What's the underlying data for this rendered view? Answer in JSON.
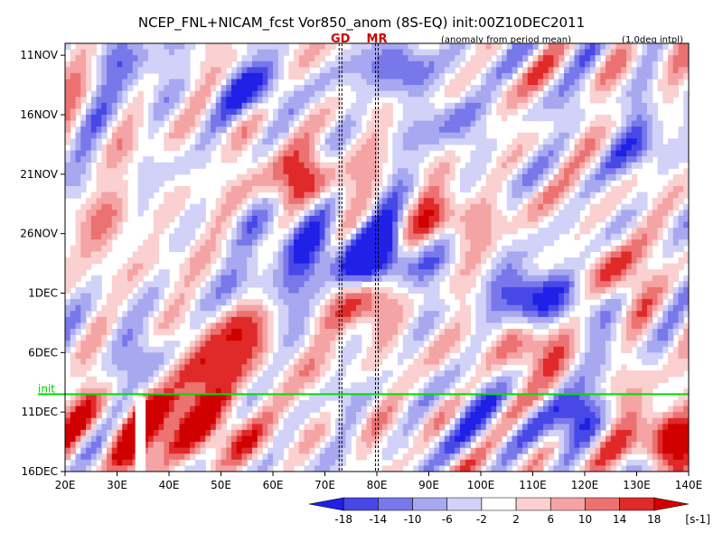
{
  "chart_data": {
    "type": "heatmap",
    "title": "NCEP_FNL+NICAM_fcst Vor850_anom (8S-EQ) init:00Z10DEC2011",
    "note_left": "(anomaly from period mean)",
    "note_right": "(1.0deg intpl)",
    "x_ticks": [
      "20E",
      "30E",
      "40E",
      "50E",
      "60E",
      "70E",
      "80E",
      "90E",
      "100E",
      "110E",
      "120E",
      "130E",
      "140E"
    ],
    "x_range": [
      20,
      140
    ],
    "y_ticks": [
      "11NOV",
      "16NOV",
      "21NOV",
      "26NOV",
      "1DEC",
      "6DEC",
      "11DEC",
      "16DEC"
    ],
    "y_range_days": [
      0,
      36
    ],
    "markers": [
      {
        "label": "GD",
        "lon": 73
      },
      {
        "label": "MR",
        "lon": 80
      }
    ],
    "init_label": "init",
    "init_day": 29.5,
    "colorbar": {
      "levels": [
        "-18",
        "-14",
        "-10",
        "-6",
        "-2",
        "2",
        "6",
        "10",
        "14",
        "18"
      ],
      "colors": [
        "#2020e6",
        "#4848e6",
        "#7878ea",
        "#a8a8f0",
        "#d2d2f8",
        "#ffffff",
        "#fad0d0",
        "#f4a4a4",
        "#ec7272",
        "#e02a2a",
        "#d00000"
      ],
      "unit": "[s-1]"
    },
    "features": [
      {
        "lon": 45,
        "day": 27,
        "value": 18
      },
      {
        "lon": 55,
        "day": 25,
        "value": 14
      },
      {
        "lon": 40,
        "day": 32,
        "value": 14
      },
      {
        "lon": 65,
        "day": 11,
        "value": 16
      },
      {
        "lon": 78,
        "day": 22,
        "value": 14
      },
      {
        "lon": 95,
        "day": 15,
        "value": 12
      },
      {
        "lon": 110,
        "day": 26,
        "value": 14
      },
      {
        "lon": 127,
        "day": 20,
        "value": 14
      },
      {
        "lon": 135,
        "day": 33,
        "value": 18
      },
      {
        "lon": 50,
        "day": 32,
        "value": 12
      },
      {
        "lon": 28,
        "day": 16,
        "value": 8
      },
      {
        "lon": 30,
        "day": 33,
        "value": 12
      },
      {
        "lon": 57,
        "day": 4,
        "value": -14
      },
      {
        "lon": 65,
        "day": 17,
        "value": -16
      },
      {
        "lon": 77,
        "day": 18,
        "value": -14
      },
      {
        "lon": 82,
        "day": 18,
        "value": -18
      },
      {
        "lon": 108,
        "day": 21,
        "value": -18
      },
      {
        "lon": 120,
        "day": 22,
        "value": -10
      },
      {
        "lon": 84,
        "day": 2,
        "value": -14
      },
      {
        "lon": 95,
        "day": 7,
        "value": -8
      },
      {
        "lon": 130,
        "day": 8,
        "value": -10
      },
      {
        "lon": 33,
        "day": 2,
        "value": -10
      },
      {
        "lon": 36,
        "day": 26,
        "value": -12
      },
      {
        "lon": 118,
        "day": 31,
        "value": -12
      },
      {
        "lon": 60,
        "day": 21,
        "value": -8
      },
      {
        "lon": 100,
        "day": 31,
        "value": -8
      }
    ]
  }
}
